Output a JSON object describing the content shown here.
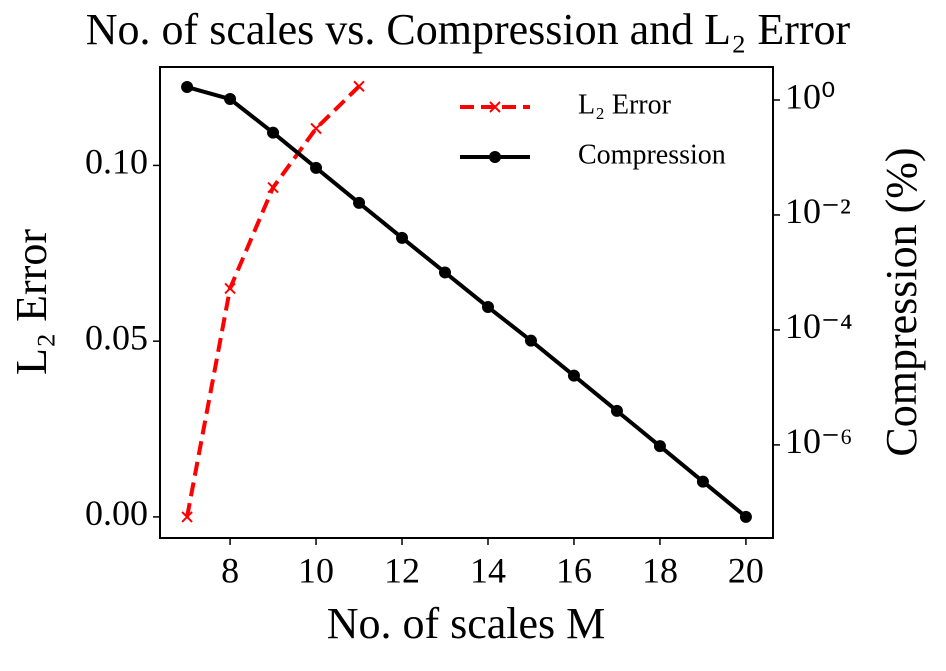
{
  "chart_data": {
    "type": "line",
    "title": "No. of scales vs. Compression and L₂ Error",
    "x_label": "No. of scales M",
    "y_label": "L₂ Error",
    "y2_label": "Compression (%)",
    "x": [
      7,
      8,
      9,
      10,
      11,
      12,
      13,
      14,
      15,
      16,
      17,
      18,
      19,
      20
    ],
    "series": [
      {
        "name": "L₂ Error",
        "color": "#ff0000",
        "style": "dashed",
        "marker": "x",
        "axis": "y",
        "values": [
          0.0,
          0.065,
          0.0937,
          0.1105,
          0.1225,
          null,
          null,
          null,
          null,
          null,
          null,
          null,
          null,
          null
        ]
      },
      {
        "name": "Compression",
        "color": "#000000",
        "style": "solid",
        "marker": "o",
        "axis": "y2",
        "values": [
          1.68,
          1.04,
          0.27,
          0.066,
          0.0162,
          0.004,
          0.001,
          0.00025,
          6.5e-05,
          1.6e-05,
          3.9e-06,
          9.5e-07,
          2.3e-07,
          5.6e-08
        ]
      }
    ],
    "xlim": [
      6.37,
      20.63
    ],
    "xticks": [
      8,
      10,
      12,
      14,
      16,
      18,
      20
    ],
    "ylim": [
      -0.006,
      0.128
    ],
    "yticks": [
      {
        "value": 0,
        "label": "0.00"
      },
      {
        "value": 0.05,
        "label": "0.05"
      },
      {
        "value": 0.1,
        "label": "0.10"
      }
    ],
    "y2log": true,
    "y2lim": [
      2.4e-08,
      3.75
    ],
    "y2ticks": [
      {
        "value": 1,
        "label": "10⁰"
      },
      {
        "value": 0.01,
        "label": "10⁻²"
      },
      {
        "value": 0.0001,
        "label": "10⁻⁴"
      },
      {
        "value": 1e-06,
        "label": "10⁻⁶"
      }
    ],
    "legend": "upper right"
  }
}
